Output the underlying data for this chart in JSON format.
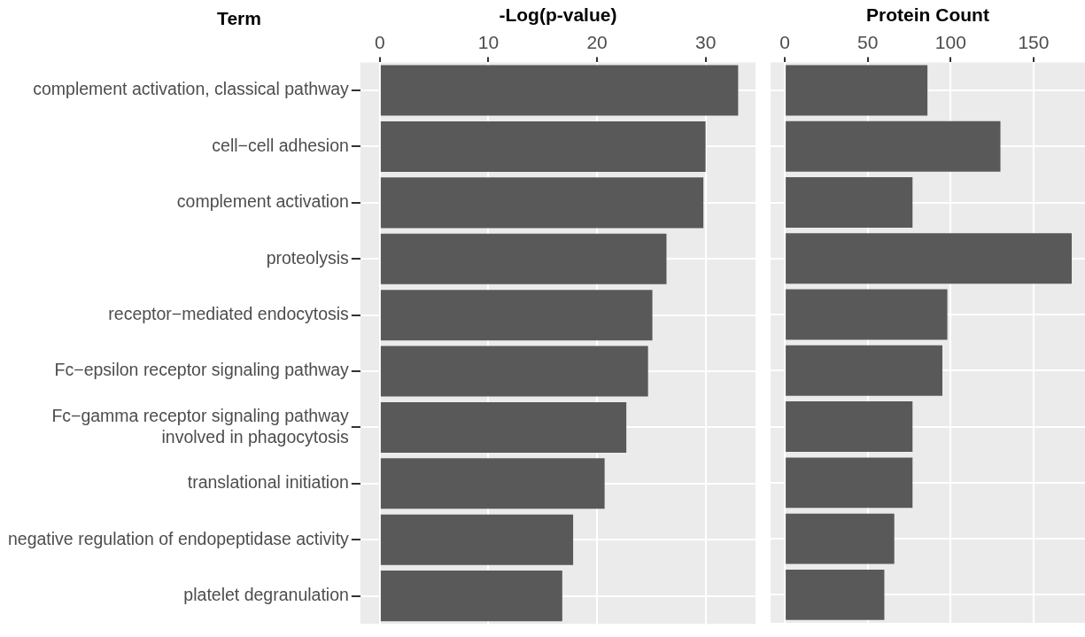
{
  "chart_data": [
    {
      "type": "bar",
      "orientation": "horizontal",
      "ylabel": "Term",
      "xlabel": "-Log(p-value)",
      "categories": [
        "complement activation, classical pathway",
        "cell−cell adhesion",
        "complement activation",
        "proteolysis",
        "receptor−mediated endocytosis",
        "Fc−epsilon receptor signaling pathway",
        "Fc−gamma receptor signaling pathway\ninvolved in phagocytosis",
        "translational initiation",
        "negative regulation of endopeptidase activity",
        "platelet degranulation"
      ],
      "values": [
        33.0,
        30.0,
        29.8,
        26.4,
        25.1,
        24.7,
        22.7,
        20.7,
        17.8,
        16.8
      ],
      "color": "#595959",
      "xlim": [
        -1.8,
        34.6
      ],
      "xticks": [
        0,
        10,
        20,
        30
      ],
      "grid": true
    },
    {
      "type": "bar",
      "orientation": "horizontal",
      "xlabel": "Protein Count",
      "categories": [
        null,
        null,
        null,
        null,
        null,
        null,
        null,
        null,
        null,
        null
      ],
      "values": [
        86,
        130,
        77,
        173,
        98,
        95,
        77,
        77,
        66,
        60
      ],
      "color": "#595959",
      "xlim": [
        -8.6,
        181
      ],
      "xticks": [
        0,
        50,
        100,
        150
      ],
      "grid": true,
      "tick_labels": "x"
    }
  ]
}
